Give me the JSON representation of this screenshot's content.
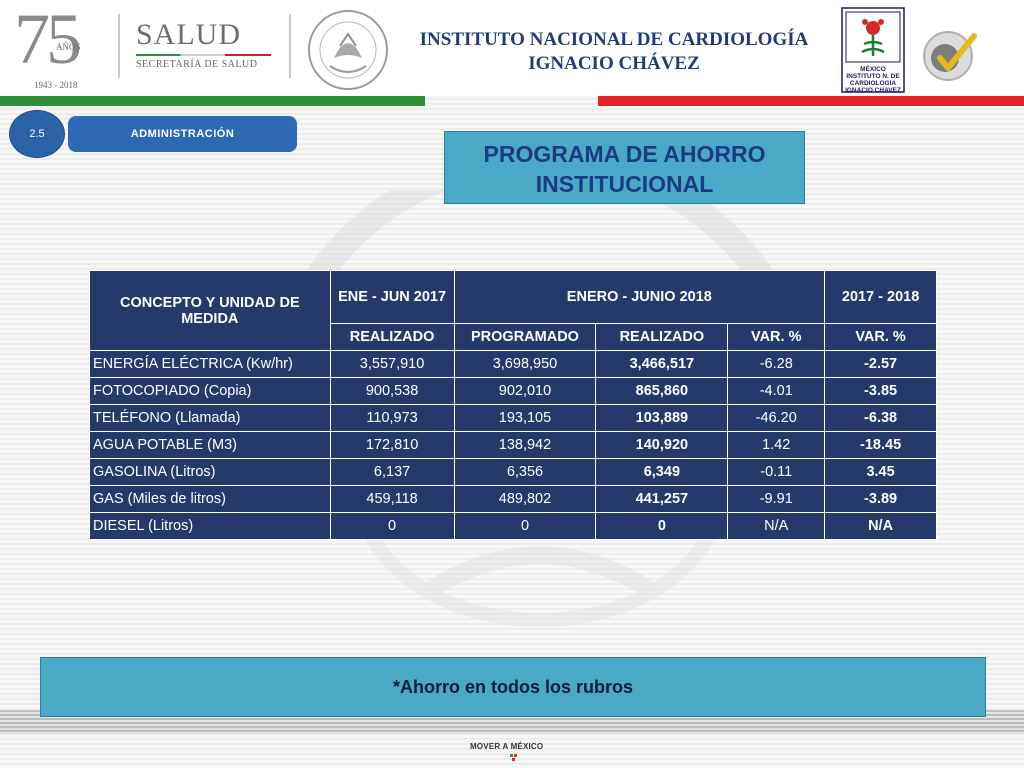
{
  "header": {
    "logo_75": {
      "number": "75",
      "word": "AÑOS",
      "years": "1943 - 2018"
    },
    "salud": {
      "title": "SALUD",
      "subtitle": "SECRETARÍA DE SALUD"
    },
    "institute_line1": "INSTITUTO NACIONAL DE CARDIOLOGÍA",
    "institute_line2": "IGNACIO CHÁVEZ",
    "cardio_logo_text": [
      "MÉXICO",
      "INSTITUTO N. DE",
      "CARDIOLOGIA",
      "IGNACIO CHAVEZ"
    ]
  },
  "colors": {
    "stripe_green": "#2f8f3b",
    "stripe_red": "#e2232a",
    "badge_blue": "#2b63a8",
    "title_box": "#4aa9c6",
    "table_navy": "#253a6a",
    "title_text": "#233a7a"
  },
  "section": {
    "number": "2.5",
    "label": "ADMINISTRACIÓN"
  },
  "program_title_line1": "PROGRAMA DE AHORRO",
  "program_title_line2": "INSTITUCIONAL",
  "table": {
    "header": {
      "concept": "CONCEPTO Y UNIDAD DE MEDIDA",
      "period_2017": "ENE - JUN 2017",
      "period_2018": "ENERO - JUNIO 2018",
      "period_compare": "2017 - 2018",
      "realizado_2017": "REALIZADO",
      "programado": "PROGRAMADO",
      "realizado_2018": "REALIZADO",
      "var_pct": "VAR. %",
      "var_pct_compare": "VAR. %"
    },
    "rows": [
      {
        "concept": "ENERGÍA ELÉCTRICA (Kw/hr)",
        "realizado_2017": "3,557,910",
        "programado": "3,698,950",
        "realizado_2018": "3,466,517",
        "var": "-6.28",
        "var_compare": "-2.57"
      },
      {
        "concept": "FOTOCOPIADO (Copia)",
        "realizado_2017": "900,538",
        "programado": "902,010",
        "realizado_2018": "865,860",
        "var": "-4.01",
        "var_compare": "-3.85"
      },
      {
        "concept": "TELÉFONO (Llamada)",
        "realizado_2017": "110,973",
        "programado": "193,105",
        "realizado_2018": "103,889",
        "var": "-46.20",
        "var_compare": "-6.38"
      },
      {
        "concept": "AGUA POTABLE (M3)",
        "realizado_2017": "172,810",
        "programado": "138,942",
        "realizado_2018": "140,920",
        "var": "1.42",
        "var_compare": "-18.45"
      },
      {
        "concept": "GASOLINA (Litros)",
        "realizado_2017": "6,137",
        "programado": "6,356",
        "realizado_2018": "6,349",
        "var": "-0.11",
        "var_compare": "3.45"
      },
      {
        "concept": "GAS (Miles de litros)",
        "realizado_2017": "459,118",
        "programado": "489,802",
        "realizado_2018": "441,257",
        "var": "-9.91",
        "var_compare": "-3.89"
      },
      {
        "concept": "DIESEL (Litros)",
        "realizado_2017": "0",
        "programado": "0",
        "realizado_2018": "0",
        "var": "N/A",
        "var_compare": "N/A"
      }
    ]
  },
  "footer_note": "*Ahorro en todos los rubros",
  "footer_logo": "MOVER A MÉXICO"
}
